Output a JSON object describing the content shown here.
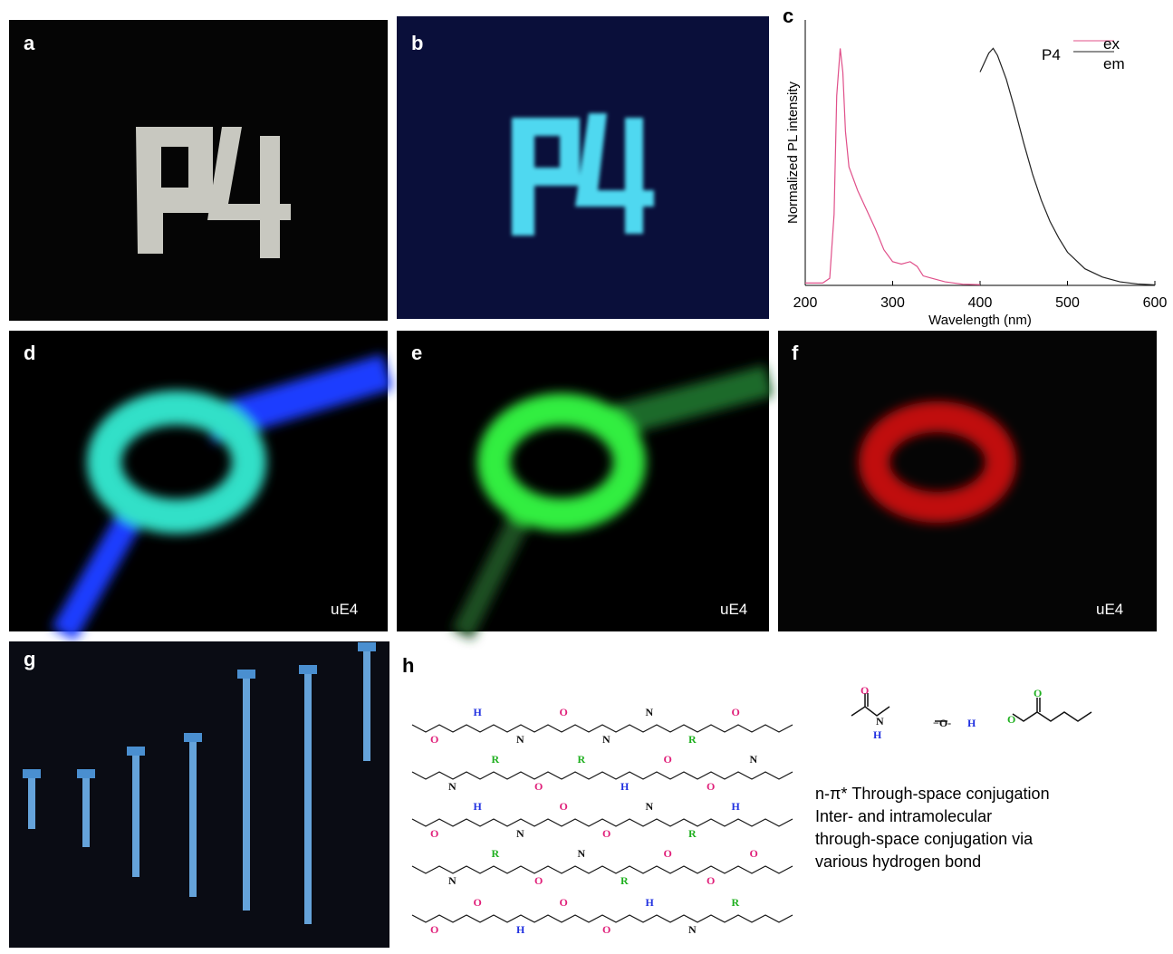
{
  "panel_labels": [
    "a",
    "b",
    "c",
    "d",
    "e",
    "f",
    "g",
    "h"
  ],
  "photo_captions": [
    "uE4",
    "uE4",
    "uE4"
  ],
  "chart_data": {
    "type": "line",
    "xlabel": "Wavelength (nm)",
    "ylabel": "Normalized PL intensity",
    "legend_title": "P4",
    "xlim": [
      200,
      600
    ],
    "xticks": [
      200,
      300,
      400,
      500,
      600
    ],
    "ylim": [
      0,
      1.12
    ],
    "series": [
      {
        "name": "ex",
        "color": "#e0508a",
        "x": [
          200,
          220,
          228,
          233,
          236,
          240,
          243,
          246,
          250,
          260,
          270,
          280,
          290,
          300,
          310,
          320,
          328,
          335,
          345,
          360,
          380,
          400
        ],
        "values": [
          0.01,
          0.01,
          0.03,
          0.3,
          0.8,
          1.0,
          0.9,
          0.65,
          0.5,
          0.4,
          0.32,
          0.24,
          0.15,
          0.1,
          0.09,
          0.1,
          0.08,
          0.04,
          0.03,
          0.015,
          0.005,
          0.003
        ]
      },
      {
        "name": "em",
        "color": "#222222",
        "x": [
          400,
          410,
          415,
          420,
          430,
          440,
          450,
          460,
          470,
          480,
          490,
          500,
          520,
          540,
          560,
          580,
          600
        ],
        "values": [
          0.9,
          0.98,
          1.0,
          0.97,
          0.87,
          0.74,
          0.6,
          0.47,
          0.36,
          0.27,
          0.2,
          0.14,
          0.07,
          0.035,
          0.015,
          0.006,
          0.002
        ]
      }
    ]
  },
  "h": {
    "amide": [
      "O",
      "N",
      "H"
    ],
    "hydroxyl": [
      "−O-",
      "H"
    ],
    "ester": [
      "O",
      "O"
    ],
    "network_atoms": [
      "O",
      "N",
      "O",
      "N",
      "O",
      "H",
      "R",
      "H",
      "R",
      "O",
      "N",
      "O",
      "N",
      "O",
      "H",
      "O",
      "R",
      "O",
      "N",
      "O",
      "N",
      "H",
      "O",
      "R",
      "O",
      "N",
      "O",
      "N",
      "O",
      "H",
      "R",
      "O",
      "R",
      "O",
      "N",
      "O",
      "N",
      "H",
      "O",
      "R"
    ],
    "description": [
      "n-π* Through-space conjugation",
      "Inter- and intramolecular",
      "through-space conjugation via",
      "various hydrogen bond"
    ]
  }
}
